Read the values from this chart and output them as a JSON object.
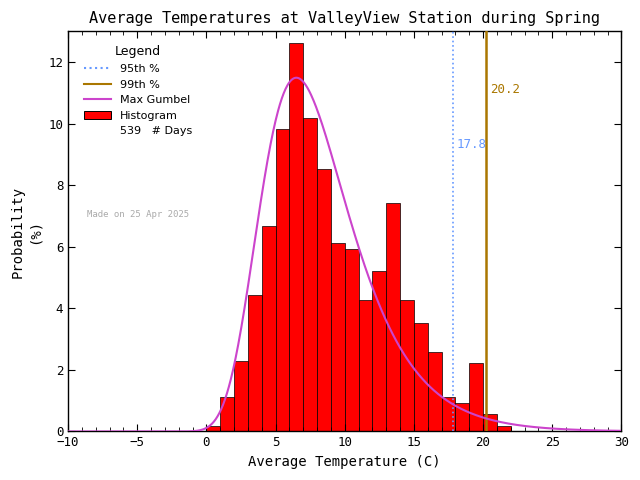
{
  "title": "Average Temperatures at ValleyView Station during Spring",
  "xlabel": "Average Temperature (C)",
  "ylabel": "Probability\n(%)",
  "xlim": [
    -10,
    30
  ],
  "ylim": [
    0,
    13
  ],
  "yticks": [
    0,
    2,
    4,
    6,
    8,
    10,
    12
  ],
  "xticks": [
    -10,
    -5,
    0,
    5,
    10,
    15,
    20,
    25,
    30
  ],
  "bin_starts": [
    -8,
    -7,
    -6,
    -5,
    -4,
    -3,
    -2,
    -1,
    0,
    1,
    2,
    3,
    4,
    5,
    6,
    7,
    8,
    9,
    10,
    11,
    12,
    13,
    14,
    15,
    16,
    17,
    18,
    19,
    20,
    21,
    22,
    23,
    24,
    25,
    26,
    27,
    28
  ],
  "bar_heights": [
    0.0,
    0.0,
    0.0,
    0.0,
    0.0,
    0.0,
    0.0,
    0.0,
    0.19,
    1.11,
    2.3,
    4.45,
    6.68,
    9.83,
    12.62,
    10.2,
    8.52,
    6.12,
    5.94,
    4.26,
    5.2,
    7.42,
    4.26,
    3.52,
    2.59,
    1.11,
    0.93,
    2.22,
    0.56,
    0.19,
    0.0,
    0.0,
    0.0,
    0.0,
    0.0,
    0.0,
    0.0
  ],
  "hist_color": "red",
  "hist_edgecolor": "black",
  "gumbel_color": "#cc44cc",
  "gumbel_lw": 1.5,
  "pct95_color": "#6699ff",
  "pct95_value": 17.8,
  "pct99_color": "#aa7700",
  "pct99_value": 20.2,
  "n_days": 539,
  "made_on": "Made on 25 Apr 2025",
  "legend_title": "Legend",
  "background_color": "white",
  "gumbel_mu": 6.5,
  "gumbel_beta": 3.2
}
